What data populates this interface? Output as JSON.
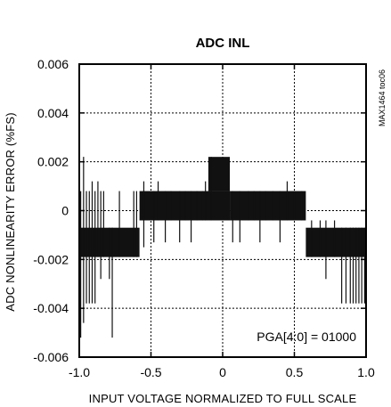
{
  "chart_data": {
    "type": "line",
    "title": "ADC INL",
    "xlabel": "INPUT VOLTAGE NORMALIZED TO FULL SCALE",
    "ylabel": "ADC NONLINEARITY ERROR (%FS)",
    "xlim": [
      -1.0,
      1.0
    ],
    "ylim": [
      -0.006,
      0.006
    ],
    "x_ticks": [
      -1.0,
      -0.5,
      0,
      0.5,
      1.0
    ],
    "x_tick_labels": [
      "-1.0",
      "-0.5",
      "0",
      "0.5",
      "1.0"
    ],
    "y_ticks": [
      0.006,
      0.004,
      0.002,
      0,
      -0.002,
      -0.004,
      -0.006
    ],
    "y_tick_labels": [
      "0.006",
      "0.004",
      "0.002",
      "0",
      "-0.002",
      "-0.004",
      "-0.006"
    ],
    "grid": true,
    "annotation": "PGA[4:0] = 01000",
    "side_label": "MAX1464 toc06",
    "series": [
      {
        "bands": [
          {
            "x": [
              -1.0,
              -0.58
            ],
            "y": [
              -0.0019,
              -0.0007
            ]
          },
          {
            "x": [
              -0.58,
              0.05
            ],
            "y": [
              -0.0004,
              0.0008
            ]
          },
          {
            "x": [
              0.05,
              0.58
            ],
            "y": [
              -0.0004,
              0.0008
            ]
          },
          {
            "x": [
              0.58,
              1.0
            ],
            "y": [
              -0.0019,
              -0.0007
            ]
          },
          {
            "x": [
              -0.1,
              0.05
            ],
            "y": [
              0.0008,
              0.0022
            ]
          }
        ],
        "spikes": [
          [
            -0.99,
            -0.0052,
            0.0008
          ],
          [
            -0.97,
            -0.0046,
            0.0022
          ],
          [
            -0.95,
            -0.0038,
            0.0008
          ],
          [
            -0.93,
            -0.0038,
            0.0008
          ],
          [
            -0.91,
            -0.0038,
            0.0012
          ],
          [
            -0.89,
            -0.0038,
            0.0008
          ],
          [
            -0.87,
            -0.0019,
            0.0012
          ],
          [
            -0.85,
            -0.0028,
            0.0008
          ],
          [
            -0.83,
            -0.0019,
            0.0008
          ],
          [
            -0.79,
            -0.0028,
            -0.0007
          ],
          [
            -0.77,
            -0.0052,
            -0.0007
          ],
          [
            -0.72,
            -0.0019,
            0.0008
          ],
          [
            -0.62,
            -0.0019,
            0.0008
          ],
          [
            -0.6,
            -0.0019,
            0.0008
          ],
          [
            -0.55,
            -0.0015,
            0.0012
          ],
          [
            -0.48,
            -0.0013,
            0.0008
          ],
          [
            -0.45,
            -0.0004,
            0.0012
          ],
          [
            -0.4,
            -0.0013,
            0.0008
          ],
          [
            -0.36,
            -0.0004,
            0.0008
          ],
          [
            -0.3,
            -0.0013,
            0.0008
          ],
          [
            -0.26,
            -0.0004,
            0.0008
          ],
          [
            -0.22,
            -0.0013,
            0.0008
          ],
          [
            -0.18,
            -0.0004,
            0.0008
          ],
          [
            -0.14,
            -0.0004,
            0.0008
          ],
          [
            -0.12,
            -0.0004,
            0.0012
          ],
          [
            -0.08,
            -0.0004,
            0.0022
          ],
          [
            0.07,
            -0.0013,
            0.0008
          ],
          [
            0.12,
            -0.0013,
            0.0008
          ],
          [
            0.18,
            -0.0004,
            0.0008
          ],
          [
            0.22,
            -0.0004,
            0.0008
          ],
          [
            0.26,
            -0.0013,
            0.0008
          ],
          [
            0.3,
            -0.0004,
            0.0008
          ],
          [
            0.35,
            -0.0004,
            0.0008
          ],
          [
            0.4,
            -0.0013,
            0.0008
          ],
          [
            0.45,
            -0.0004,
            0.0012
          ],
          [
            0.5,
            -0.0004,
            0.0008
          ],
          [
            0.55,
            -0.0004,
            0.0008
          ],
          [
            0.62,
            -0.0019,
            -0.0004
          ],
          [
            0.68,
            -0.0019,
            -0.0004
          ],
          [
            0.72,
            -0.0028,
            -0.0004
          ],
          [
            0.78,
            -0.0019,
            -0.0004
          ],
          [
            0.83,
            -0.0038,
            -0.0007
          ],
          [
            0.86,
            -0.0038,
            -0.0007
          ],
          [
            0.89,
            -0.0038,
            -0.0007
          ],
          [
            0.91,
            -0.0038,
            -0.0007
          ],
          [
            0.93,
            -0.0038,
            -0.0007
          ],
          [
            0.95,
            -0.0038,
            -0.0007
          ],
          [
            0.97,
            -0.0038,
            -0.0007
          ],
          [
            0.99,
            -0.0038,
            -0.0007
          ]
        ]
      }
    ]
  }
}
